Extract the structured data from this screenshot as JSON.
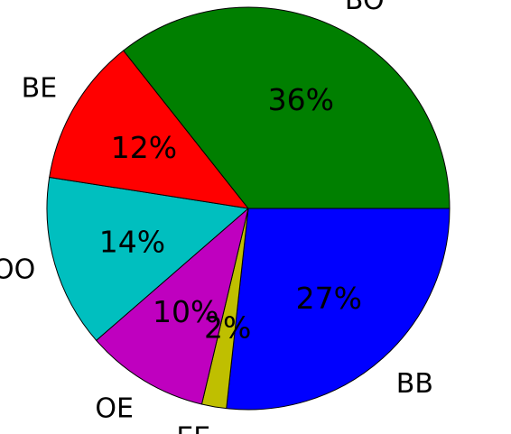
{
  "chart_data": {
    "type": "pie",
    "title": "",
    "categories": [
      "BB",
      "EE",
      "OE",
      "OO",
      "BE",
      "BO"
    ],
    "values": [
      27,
      2,
      10,
      14,
      12,
      36
    ],
    "percent_labels": [
      "27%",
      "2%",
      "10%",
      "14%",
      "12%",
      "36%"
    ],
    "colors": [
      "#0000ff",
      "#bfbf00",
      "#bf00bf",
      "#00bfbf",
      "#ff0000",
      "#007f00"
    ],
    "legend": "none",
    "start_angle_deg": 0,
    "direction": "clockwise"
  }
}
